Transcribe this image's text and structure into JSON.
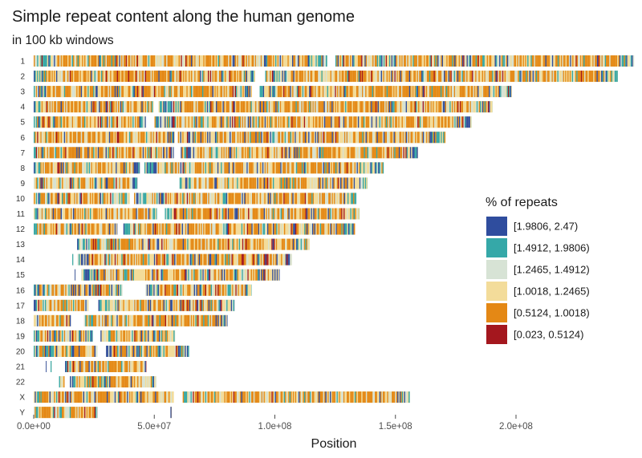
{
  "chart_data": {
    "type": "heatmap",
    "title": "Simple repeat content along the human genome",
    "subtitle": "in 100 kb windows",
    "xlabel": "Position",
    "ylabel": "",
    "xlim": [
      0,
      250000000
    ],
    "x_ticks": [
      {
        "value": 0,
        "label": "0.0e+00"
      },
      {
        "value": 50000000,
        "label": "5.0e+07"
      },
      {
        "value": 100000000,
        "label": "1.0e+08"
      },
      {
        "value": 150000000,
        "label": "1.5e+08"
      },
      {
        "value": 200000000,
        "label": "2.0e+08"
      }
    ],
    "grid": false,
    "legend_position": "right",
    "legend": {
      "title": "% of repeats",
      "bins": [
        {
          "label": "[1.9806, 2.47)",
          "color": "#2f4d9e"
        },
        {
          "label": "[1.4912, 1.9806)",
          "color": "#35a8a8"
        },
        {
          "label": "[1.2465, 1.4912)",
          "color": "#d7e3d5"
        },
        {
          "label": "[1.0018, 1.2465)",
          "color": "#f3dc9a"
        },
        {
          "label": "[0.5124, 1.0018)",
          "color": "#e48815"
        },
        {
          "label": "[0.023, 0.5124)",
          "color": "#a4171e"
        }
      ]
    },
    "chromosomes": [
      {
        "name": "1",
        "length": 248956422,
        "segments": [
          [
            0,
            121700000
          ],
          [
            125100000,
            143200000
          ],
          [
            143200000,
            248956422
          ]
        ],
        "blue_bias": 0.35
      },
      {
        "name": "2",
        "length": 242193529,
        "segments": [
          [
            0,
            91800000
          ],
          [
            96000000,
            242193529
          ]
        ],
        "blue_bias": 0.3
      },
      {
        "name": "3",
        "length": 198295559,
        "segments": [
          [
            0,
            90500000
          ],
          [
            93700000,
            198295559
          ]
        ],
        "blue_bias": 0.25
      },
      {
        "name": "4",
        "length": 190214555,
        "segments": [
          [
            0,
            49700000
          ],
          [
            51800000,
            190214555
          ]
        ],
        "blue_bias": 0.25
      },
      {
        "name": "5",
        "length": 181538259,
        "segments": [
          [
            0,
            46500000
          ],
          [
            50100000,
            181538259
          ]
        ],
        "blue_bias": 0.3
      },
      {
        "name": "6",
        "length": 170805979,
        "segments": [
          [
            0,
            58500000
          ],
          [
            59800000,
            170805979
          ]
        ],
        "blue_bias": 0.3
      },
      {
        "name": "7",
        "length": 159345973,
        "segments": [
          [
            0,
            58100000
          ],
          [
            61000000,
            159345973
          ]
        ],
        "blue_bias": 0.4
      },
      {
        "name": "8",
        "length": 145138636,
        "segments": [
          [
            0,
            44000000
          ],
          [
            45900000,
            145138636
          ]
        ],
        "blue_bias": 0.35
      },
      {
        "name": "9",
        "length": 138394717,
        "segments": [
          [
            0,
            43000000
          ],
          [
            60500000,
            138394717
          ]
        ],
        "blue_bias": 0.4
      },
      {
        "name": "10",
        "length": 133797422,
        "segments": [
          [
            0,
            39800000
          ],
          [
            41600000,
            133797422
          ]
        ],
        "blue_bias": 0.4
      },
      {
        "name": "11",
        "length": 135086622,
        "segments": [
          [
            0,
            51100000
          ],
          [
            54400000,
            135086622
          ]
        ],
        "blue_bias": 0.4
      },
      {
        "name": "12",
        "length": 133275309,
        "segments": [
          [
            0,
            34700000
          ],
          [
            37200000,
            133275309
          ]
        ],
        "blue_bias": 0.35
      },
      {
        "name": "13",
        "length": 114364328,
        "segments": [
          [
            18000000,
            114364328
          ]
        ],
        "blue_bias": 0.35
      },
      {
        "name": "14",
        "length": 107043718,
        "segments": [
          [
            16000000,
            16400000
          ],
          [
            18200000,
            107043718
          ]
        ],
        "blue_bias": 0.4
      },
      {
        "name": "15",
        "length": 101991189,
        "segments": [
          [
            17000000,
            17300000
          ],
          [
            19700000,
            101991189
          ]
        ],
        "blue_bias": 0.45
      },
      {
        "name": "16",
        "length": 90338345,
        "segments": [
          [
            0,
            36800000
          ],
          [
            46400000,
            90338345
          ]
        ],
        "blue_bias": 0.55
      },
      {
        "name": "17",
        "length": 83257441,
        "segments": [
          [
            0,
            22700000
          ],
          [
            26800000,
            83257441
          ]
        ],
        "blue_bias": 0.5
      },
      {
        "name": "18",
        "length": 80373285,
        "segments": [
          [
            0,
            15400000
          ],
          [
            20900000,
            80373285
          ]
        ],
        "blue_bias": 0.35
      },
      {
        "name": "19",
        "length": 58617616,
        "segments": [
          [
            0,
            24500000
          ],
          [
            27700000,
            58617616
          ]
        ],
        "blue_bias": 0.7
      },
      {
        "name": "20",
        "length": 64444167,
        "segments": [
          [
            0,
            26400000
          ],
          [
            30000000,
            64444167
          ]
        ],
        "blue_bias": 0.55
      },
      {
        "name": "21",
        "length": 46709983,
        "segments": [
          [
            5000000,
            5300000
          ],
          [
            7000000,
            7400000
          ],
          [
            13000000,
            46709983
          ]
        ],
        "blue_bias": 0.45
      },
      {
        "name": "22",
        "length": 50818468,
        "segments": [
          [
            10500000,
            12800000
          ],
          [
            15000000,
            50818468
          ]
        ],
        "blue_bias": 0.55
      },
      {
        "name": "X",
        "length": 156040895,
        "segments": [
          [
            0,
            58100000
          ],
          [
            61800000,
            156040895
          ]
        ],
        "blue_bias": 0.25
      },
      {
        "name": "Y",
        "length": 57227415,
        "segments": [
          [
            0,
            26600000
          ],
          [
            56700000,
            57227415
          ]
        ],
        "blue_bias": 0.35
      }
    ]
  }
}
